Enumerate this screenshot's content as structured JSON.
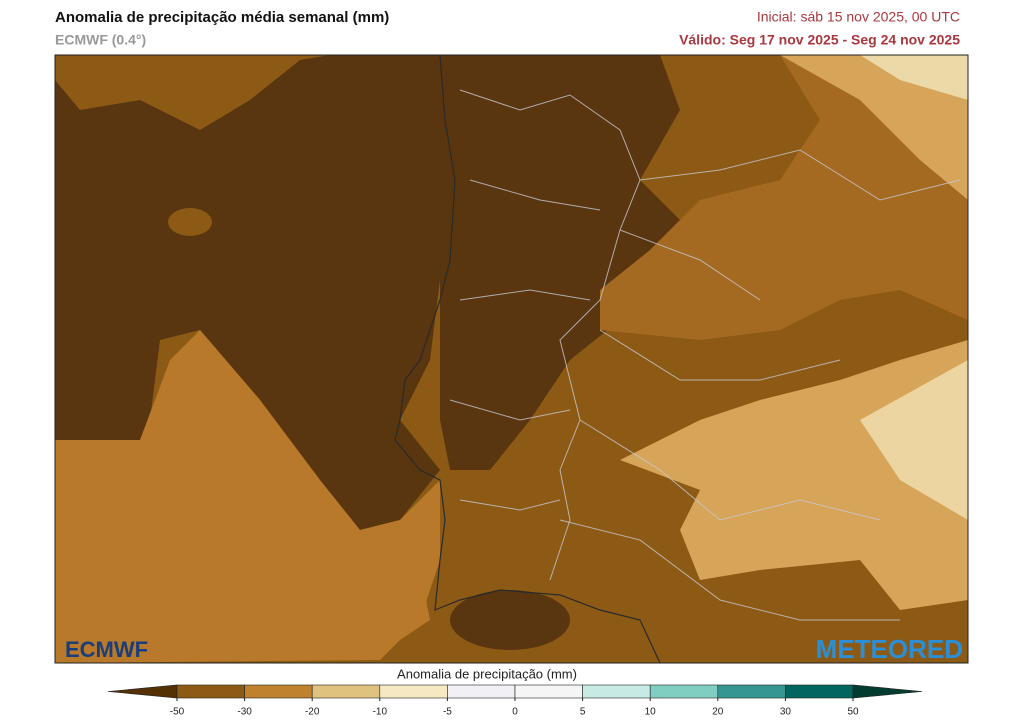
{
  "header": {
    "title": "Anomalia de precipitação média semanal (mm)",
    "model": "ECMWF (0.4°)",
    "initial": "Inicial:  sáb 15 nov 2025, 00 UTC",
    "valid": "Válido: Seg 17 nov 2025 - Seg 24 nov 2025"
  },
  "logos": {
    "left": "ECMWF",
    "right": "METEORED"
  },
  "colorbar": {
    "title": "Anomalia de precipitação (mm)",
    "ticks": [
      -50,
      -30,
      -20,
      -10,
      -5,
      0,
      5,
      10,
      20,
      30,
      50
    ],
    "colors": [
      "#543005",
      "#8c5a14",
      "#bf812d",
      "#dfc27d",
      "#f6e8c3",
      "#f0f0f5",
      "#f5f5f5",
      "#c7eae5",
      "#80cdc1",
      "#35978f",
      "#01665e",
      "#003c30"
    ]
  }
}
